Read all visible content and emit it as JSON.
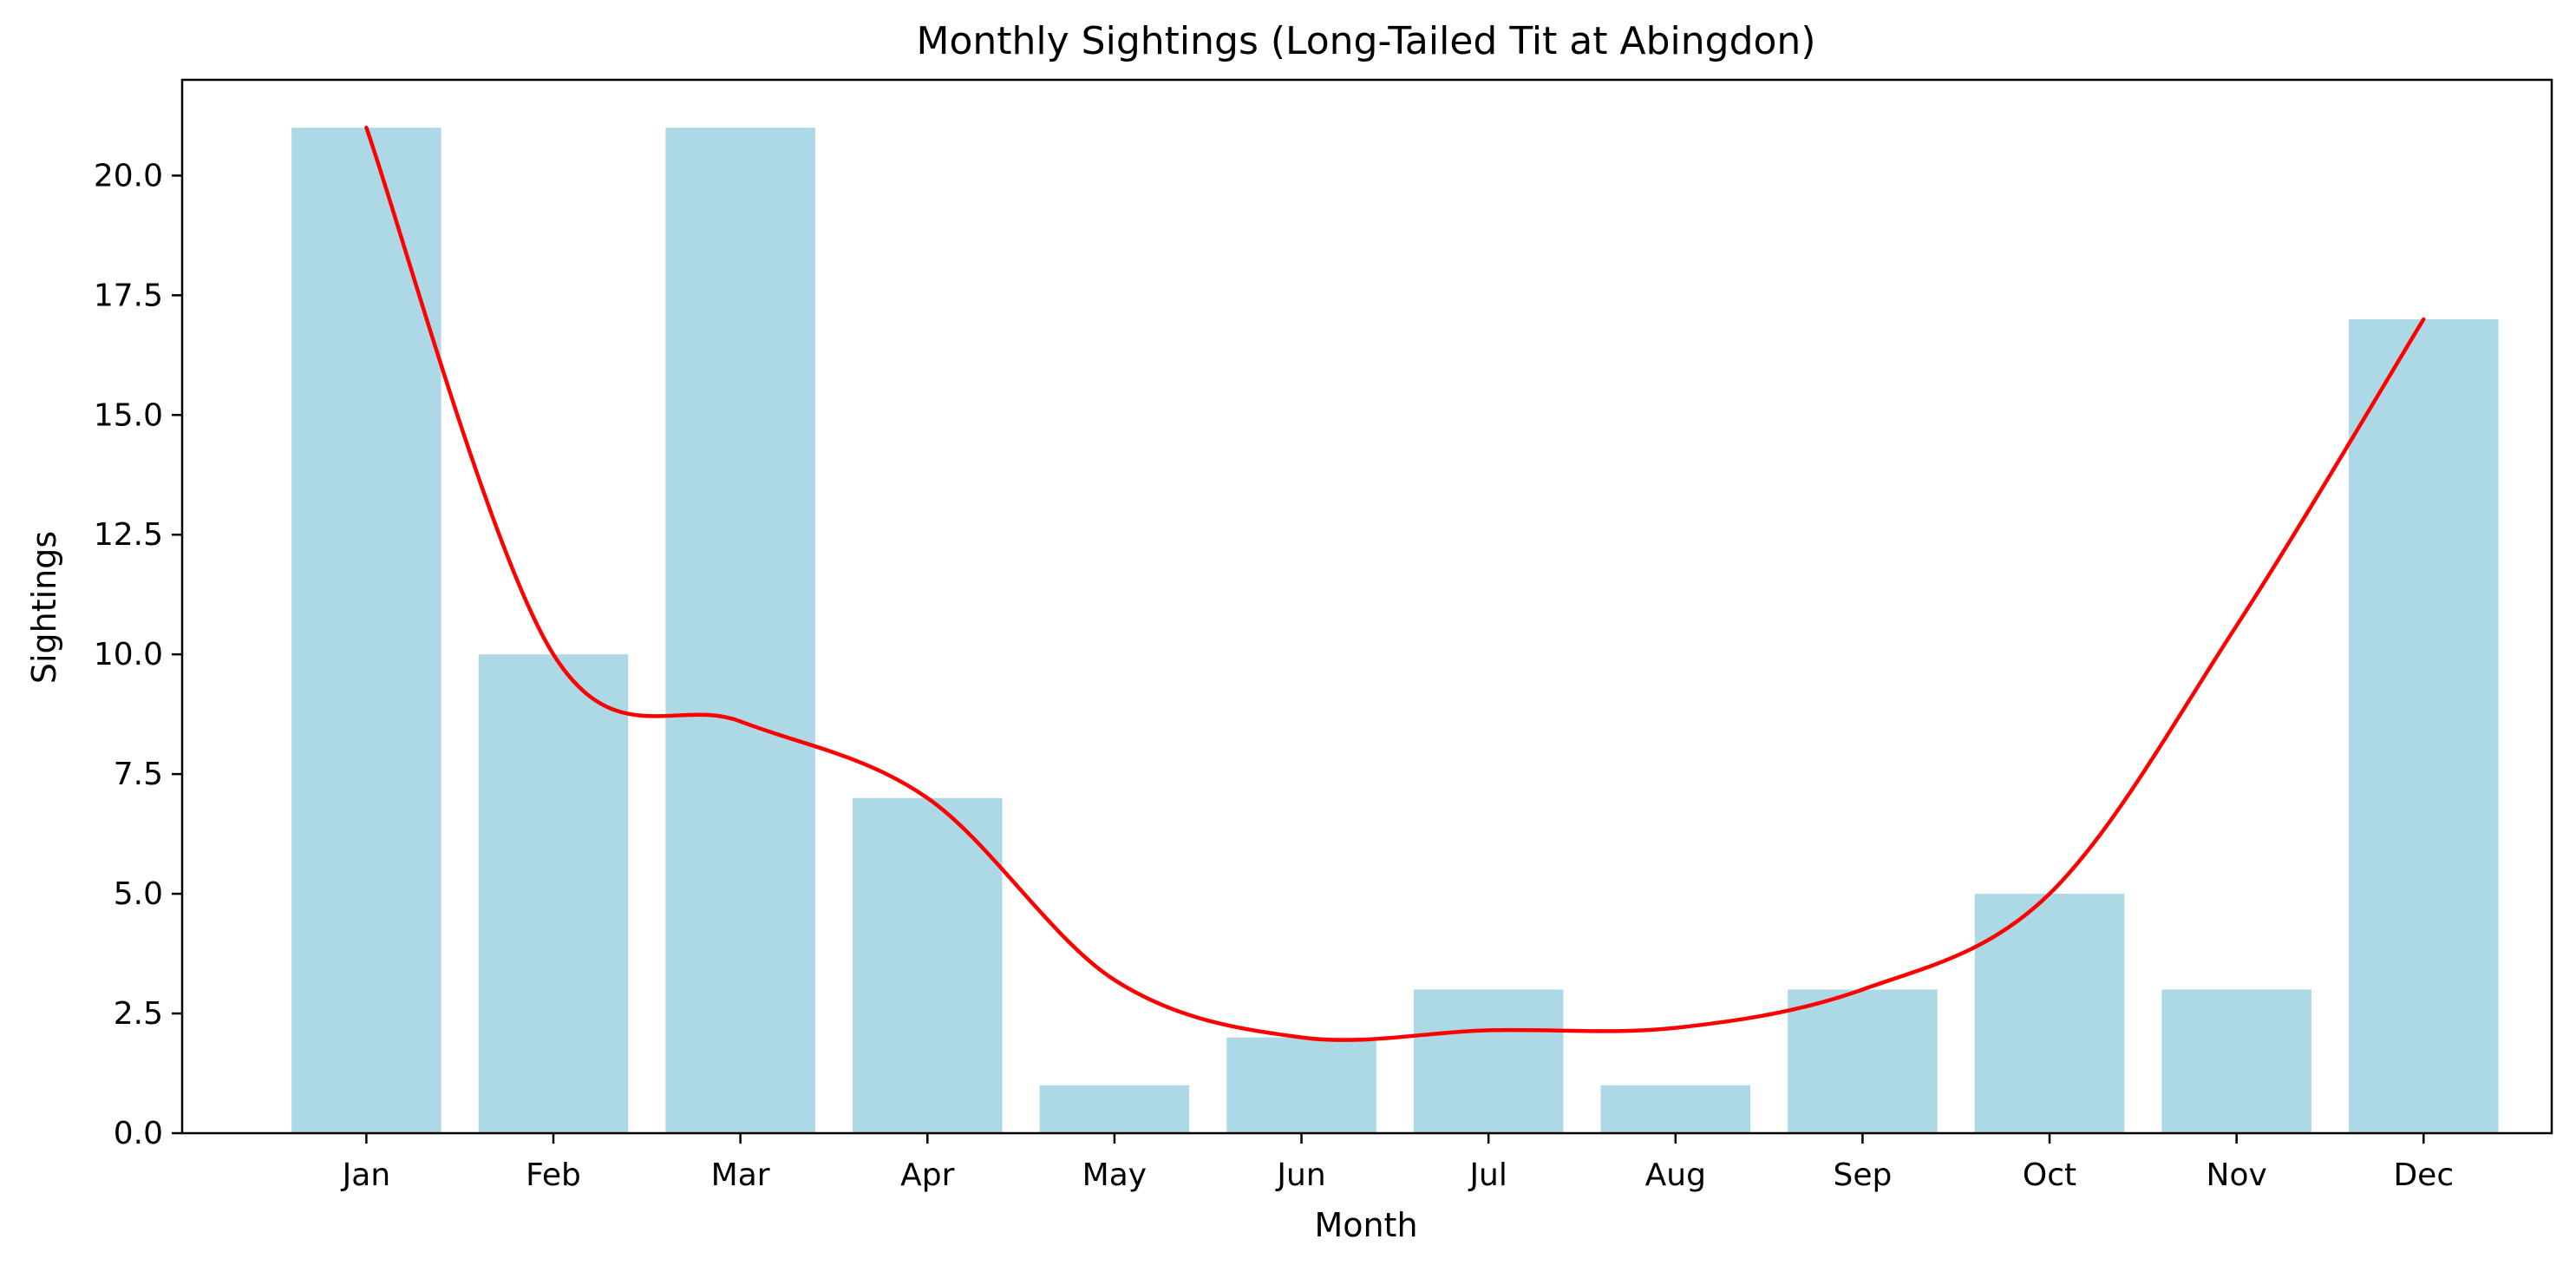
{
  "chart_data": {
    "type": "bar",
    "title": "Monthly Sightings (Long-Tailed Tit at Abingdon)",
    "xlabel": "Month",
    "ylabel": "Sightings",
    "categories": [
      "Jan",
      "Feb",
      "Mar",
      "Apr",
      "May",
      "Jun",
      "Jul",
      "Aug",
      "Sep",
      "Oct",
      "Nov",
      "Dec"
    ],
    "values": [
      21,
      10,
      21,
      7,
      1,
      2,
      3,
      1,
      3,
      5,
      3,
      17
    ],
    "smooth_line": {
      "x": [
        0,
        1,
        2,
        3,
        4,
        5,
        6,
        7,
        8,
        9,
        10,
        11
      ],
      "y": [
        21,
        10,
        8.6,
        7,
        3.2,
        2,
        2.15,
        2.2,
        3,
        5,
        10.6,
        17
      ]
    },
    "ylim": [
      0,
      22
    ],
    "yticks": [
      0.0,
      2.5,
      5.0,
      7.5,
      10.0,
      12.5,
      15.0,
      17.5,
      20.0
    ],
    "ytick_labels": [
      "0.0",
      "2.5",
      "5.0",
      "7.5",
      "10.0",
      "12.5",
      "15.0",
      "17.5",
      "20.0"
    ],
    "colors": {
      "bar": "#add8e6",
      "line": "#ff0000",
      "axes": "#000000"
    },
    "grid": false
  }
}
